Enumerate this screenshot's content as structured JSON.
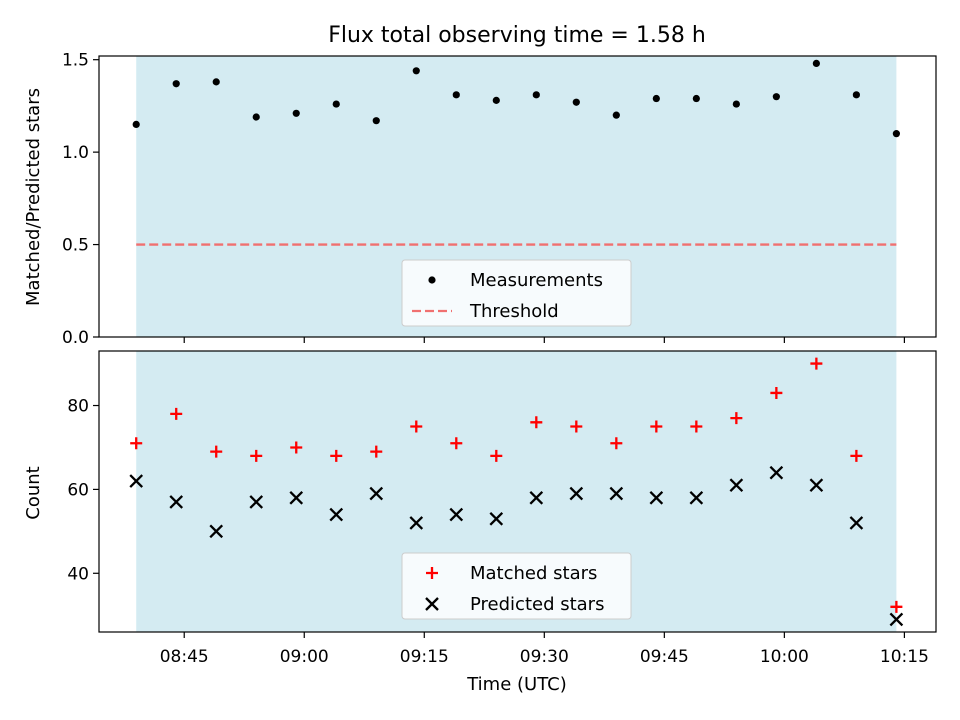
{
  "chart_data": [
    {
      "type": "scatter",
      "title": "Flux total observing time = 1.58 h",
      "xlabel": "",
      "ylabel": "Matched/Predicted stars",
      "ylim": [
        0,
        1.52
      ],
      "yticks": [
        "0.0",
        "0.5",
        "1.0",
        "1.5"
      ],
      "x_axis": "time (UTC)",
      "shaded_span": [
        "08:39",
        "10:14"
      ],
      "shade_color": "#add8e6",
      "series": [
        {
          "name": "Measurements",
          "marker": "dot",
          "color": "#000000",
          "x": [
            "08:39",
            "08:44",
            "08:49",
            "08:54",
            "08:59",
            "09:04",
            "09:09",
            "09:14",
            "09:19",
            "09:24",
            "09:29",
            "09:34",
            "09:39",
            "09:44",
            "09:49",
            "09:54",
            "09:59",
            "10:04",
            "10:09",
            "10:14"
          ],
          "y": [
            1.15,
            1.37,
            1.38,
            1.19,
            1.21,
            1.26,
            1.17,
            1.44,
            1.31,
            1.28,
            1.31,
            1.27,
            1.2,
            1.29,
            1.29,
            1.26,
            1.3,
            1.48,
            1.31,
            1.1
          ]
        },
        {
          "name": "Threshold",
          "marker": "dashed-line",
          "color": "#f07070",
          "x": [
            "08:39",
            "10:14"
          ],
          "y": [
            0.5,
            0.5
          ]
        }
      ],
      "legend": {
        "position": "lower-center",
        "labels": [
          "Measurements",
          "Threshold"
        ]
      }
    },
    {
      "type": "scatter",
      "title": "",
      "xlabel": "Time (UTC)",
      "ylabel": "Count",
      "ylim": [
        26,
        93
      ],
      "yticks": [
        "40",
        "60",
        "80"
      ],
      "xticks": [
        "08:45",
        "09:00",
        "09:15",
        "09:30",
        "09:45",
        "10:00",
        "10:15"
      ],
      "shaded_span": [
        "08:39",
        "10:14"
      ],
      "shade_color": "#add8e6",
      "series": [
        {
          "name": "Matched stars",
          "marker": "plus",
          "color": "#ff0000",
          "x": [
            "08:39",
            "08:44",
            "08:49",
            "08:54",
            "08:59",
            "09:04",
            "09:09",
            "09:14",
            "09:19",
            "09:24",
            "09:29",
            "09:34",
            "09:39",
            "09:44",
            "09:49",
            "09:54",
            "09:59",
            "10:04",
            "10:09",
            "10:14"
          ],
          "y": [
            71,
            78,
            69,
            68,
            70,
            68,
            69,
            75,
            71,
            68,
            76,
            75,
            71,
            75,
            75,
            77,
            83,
            90,
            68,
            32
          ]
        },
        {
          "name": "Predicted stars",
          "marker": "x",
          "color": "#000000",
          "x": [
            "08:39",
            "08:44",
            "08:49",
            "08:54",
            "08:59",
            "09:04",
            "09:09",
            "09:14",
            "09:19",
            "09:24",
            "09:29",
            "09:34",
            "09:39",
            "09:44",
            "09:49",
            "09:54",
            "09:59",
            "10:04",
            "10:09",
            "10:14"
          ],
          "y": [
            62,
            57,
            50,
            57,
            58,
            54,
            59,
            52,
            54,
            53,
            58,
            59,
            59,
            58,
            58,
            61,
            64,
            61,
            52,
            29
          ]
        }
      ],
      "legend": {
        "position": "lower-center",
        "labels": [
          "Matched stars",
          "Predicted stars"
        ]
      }
    }
  ]
}
